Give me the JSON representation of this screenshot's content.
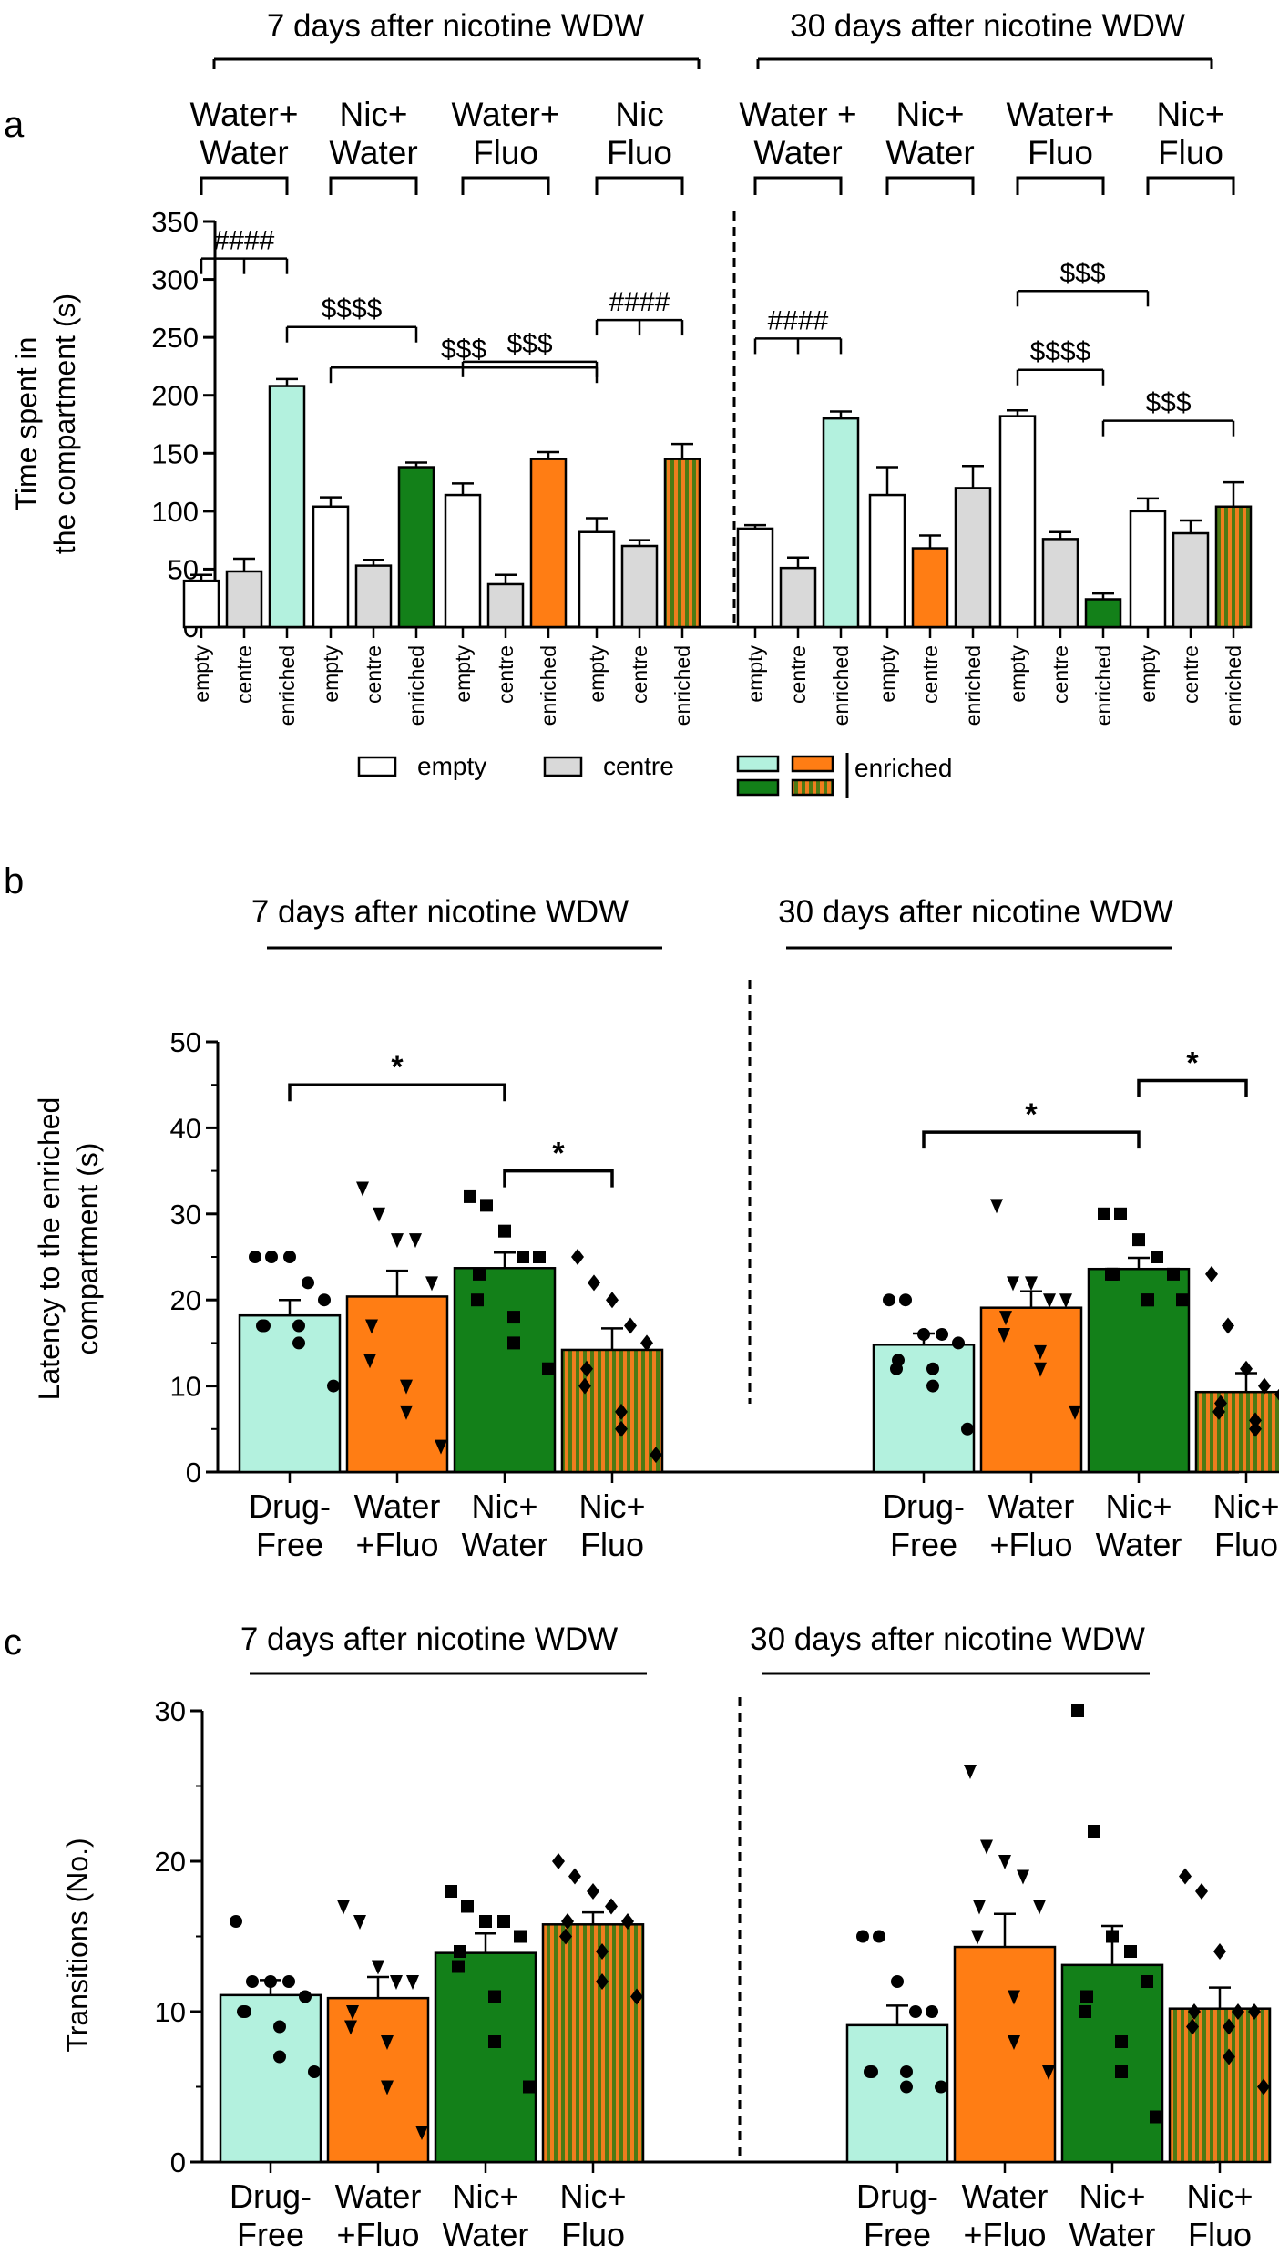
{
  "colors": {
    "white": "#ffffff",
    "grey": "#d9d9d9",
    "mint": "#b3f1de",
    "orange": "#ff7d14",
    "green": "#138019",
    "stripeA": "#4d7a14",
    "stripeB": "#f07d1e",
    "line": "#000000"
  },
  "chart_data": [
    {
      "panel": "a",
      "type": "bar",
      "ylabel": [
        "Time spent in",
        "the compartment (s)"
      ],
      "ylim": [
        0,
        350
      ],
      "yticks": [
        0,
        50,
        100,
        150,
        200,
        250,
        300,
        350
      ],
      "headers": [
        "7 days after nicotine WDW",
        "30 days after nicotine WDW"
      ],
      "groups": [
        {
          "label": [
            "Water+",
            "Water"
          ],
          "bars": [
            {
              "category": "empty",
              "value": 40,
              "err": 5,
              "fill": "white"
            },
            {
              "category": "centre",
              "value": 48,
              "err": 11,
              "fill": "grey"
            },
            {
              "category": "enriched",
              "value": 208,
              "err": 6,
              "fill": "mint"
            }
          ]
        },
        {
          "label": [
            "Nic+",
            "Water"
          ],
          "bars": [
            {
              "category": "empty",
              "value": 104,
              "err": 8,
              "fill": "white"
            },
            {
              "category": "centre",
              "value": 53,
              "err": 5,
              "fill": "grey"
            },
            {
              "category": "enriched",
              "value": 138,
              "err": 4,
              "fill": "green"
            }
          ]
        },
        {
          "label": [
            "Water+",
            "Fluo"
          ],
          "bars": [
            {
              "category": "empty",
              "value": 114,
              "err": 10,
              "fill": "white"
            },
            {
              "category": "centre",
              "value": 37,
              "err": 8,
              "fill": "grey"
            },
            {
              "category": "enriched",
              "value": 145,
              "err": 6,
              "fill": "orange"
            }
          ]
        },
        {
          "label": [
            "Nic",
            "Fluo"
          ],
          "bars": [
            {
              "category": "empty",
              "value": 82,
              "err": 12,
              "fill": "white"
            },
            {
              "category": "centre",
              "value": 70,
              "err": 5,
              "fill": "grey"
            },
            {
              "category": "enriched",
              "value": 145,
              "err": 13,
              "fill": "striped"
            }
          ]
        },
        {
          "label": [
            "Water +",
            "Water"
          ],
          "bars": [
            {
              "category": "empty",
              "value": 85,
              "err": 3,
              "fill": "white"
            },
            {
              "category": "centre",
              "value": 51,
              "err": 9,
              "fill": "grey"
            },
            {
              "category": "enriched",
              "value": 180,
              "err": 6,
              "fill": "mint"
            }
          ]
        },
        {
          "label": [
            "Nic+",
            "Water"
          ],
          "bars": [
            {
              "category": "empty",
              "value": 114,
              "err": 24,
              "fill": "white"
            },
            {
              "category": "centre",
              "value": 68,
              "err": 11,
              "fill": "orange"
            },
            {
              "category": "enriched",
              "value": 120,
              "err": 19,
              "fill": "grey"
            }
          ]
        },
        {
          "label": [
            "Water+",
            "Fluo"
          ],
          "bars": [
            {
              "category": "empty",
              "value": 182,
              "err": 5,
              "fill": "white"
            },
            {
              "category": "centre",
              "value": 76,
              "err": 6,
              "fill": "grey"
            },
            {
              "category": "enriched",
              "value": 24,
              "err": 5,
              "fill": "green"
            }
          ]
        },
        {
          "label": [
            "Nic+",
            "Fluo"
          ],
          "bars": [
            {
              "category": "empty",
              "value": 100,
              "err": 11,
              "fill": "white"
            },
            {
              "category": "centre",
              "value": 81,
              "err": 11,
              "fill": "grey"
            },
            {
              "category": "enriched",
              "value": 104,
              "err": 21,
              "fill": "striped"
            }
          ]
        }
      ],
      "significance": [
        {
          "label": "####",
          "y": 318,
          "bars": [
            0,
            1,
            2
          ]
        },
        {
          "label": "$$$$",
          "y": 259,
          "bars": [
            2,
            5
          ]
        },
        {
          "label": "$$$",
          "y": 224,
          "bars": [
            3,
            9
          ]
        },
        {
          "label": "$$$",
          "y": 229,
          "bars": [
            6,
            9
          ]
        },
        {
          "label": "####",
          "y": 265,
          "bars": [
            9,
            10,
            11
          ]
        },
        {
          "label": "####",
          "y": 249,
          "bars": [
            12,
            13,
            14
          ]
        },
        {
          "label": "$$$",
          "y": 290,
          "bars": [
            18,
            21
          ]
        },
        {
          "label": "$$$$",
          "y": 222,
          "bars": [
            18,
            20
          ]
        },
        {
          "label": "$$$",
          "y": 178,
          "bars": [
            20,
            23
          ]
        }
      ],
      "legend": {
        "empty": "empty",
        "centre": "centre",
        "enriched": "enriched"
      }
    },
    {
      "panel": "b",
      "type": "bar",
      "ylabel": [
        "Latency to the enriched",
        "compartment (s)"
      ],
      "ylim": [
        0,
        50
      ],
      "yticks": [
        0,
        10,
        20,
        30,
        40,
        50
      ],
      "headers": [
        "7 days   after nicotine WDW",
        "30 days after nicotine WDW"
      ],
      "series": [
        {
          "name": [
            "Drug-",
            "Free"
          ],
          "fill": "mint",
          "marker": "circle",
          "values": [
            18.2,
            14.8
          ],
          "err": [
            1.8,
            1.3
          ],
          "points": [
            [
              25,
              25,
              25,
              22,
              20,
              17,
              17,
              17,
              15,
              10
            ],
            [
              20,
              20,
              16,
              16,
              15,
              13,
              12,
              12,
              10,
              5
            ]
          ]
        },
        {
          "name": [
            "Water",
            "+Fluo"
          ],
          "fill": "orange",
          "marker": "triangle",
          "values": [
            20.4,
            19.1
          ],
          "err": [
            3.0,
            1.9
          ],
          "points": [
            [
              33,
              30,
              27,
              27,
              22,
              17,
              13,
              10,
              7,
              3
            ],
            [
              31,
              22,
              22,
              20,
              20,
              18,
              16,
              14,
              12,
              7
            ]
          ]
        },
        {
          "name": [
            "Nic+",
            "Water"
          ],
          "fill": "green",
          "marker": "square",
          "values": [
            23.7,
            23.6
          ],
          "err": [
            1.8,
            1.3
          ],
          "points": [
            [
              32,
              31,
              28,
              25,
              25,
              23,
              20,
              18,
              15,
              12
            ],
            [
              30,
              30,
              27,
              25,
              23,
              23,
              23,
              20,
              20,
              20
            ]
          ]
        },
        {
          "name": [
            "Nic+",
            "Fluo"
          ],
          "fill": "striped",
          "marker": "diamond",
          "values": [
            14.2,
            9.3
          ],
          "err": [
            2.5,
            2.2
          ],
          "points": [
            [
              25,
              22,
              20,
              17,
              15,
              12,
              10,
              7,
              5,
              2
            ],
            [
              23,
              17,
              12,
              10,
              9,
              8,
              7,
              6,
              5,
              5
            ]
          ]
        }
      ],
      "significance": [
        {
          "label": "*",
          "y": 45,
          "period": 0,
          "from": 0,
          "to": 2
        },
        {
          "label": "*",
          "y": 35,
          "period": 0,
          "from": 2,
          "to": 3
        },
        {
          "label": "*",
          "y": 39.5,
          "period": 1,
          "from": 0,
          "to": 2
        },
        {
          "label": "*",
          "y": 45.5,
          "period": 1,
          "from": 2,
          "to": 3
        }
      ]
    },
    {
      "panel": "c",
      "type": "bar",
      "ylabel": [
        "Transitions (No.)"
      ],
      "ylim": [
        0,
        30
      ],
      "yticks": [
        0,
        10,
        20,
        30
      ],
      "headers": [
        "7 days   after nicotine WDW",
        "30 days after nicotine WDW"
      ],
      "series": [
        {
          "name": [
            "Drug-",
            "Free"
          ],
          "fill": "mint",
          "marker": "circle",
          "values": [
            11.1,
            9.1
          ],
          "err": [
            1.0,
            1.3
          ],
          "points": [
            [
              16,
              12,
              12,
              12,
              11,
              10,
              10,
              9,
              7,
              6
            ],
            [
              15,
              15,
              12,
              10,
              10,
              6,
              6,
              6,
              5,
              5
            ]
          ]
        },
        {
          "name": [
            "Water",
            "+Fluo"
          ],
          "fill": "orange",
          "marker": "triangle",
          "values": [
            10.9,
            14.3
          ],
          "err": [
            1.4,
            2.2
          ],
          "points": [
            [
              17,
              16,
              13,
              12,
              12,
              10,
              9,
              8,
              5,
              2
            ],
            [
              26,
              21,
              20,
              19,
              17,
              17,
              15,
              11,
              8,
              6
            ]
          ]
        },
        {
          "name": [
            "Nic+",
            "Water"
          ],
          "fill": "green",
          "marker": "square",
          "values": [
            13.9,
            13.1
          ],
          "err": [
            1.3,
            2.6
          ],
          "points": [
            [
              18,
              17,
              16,
              16,
              15,
              14,
              13,
              11,
              8,
              5
            ],
            [
              30,
              22,
              15,
              14,
              12,
              11,
              10,
              8,
              6,
              3
            ]
          ]
        },
        {
          "name": [
            "Nic+",
            "Fluo"
          ],
          "fill": "striped",
          "marker": "diamond",
          "values": [
            15.8,
            10.2
          ],
          "err": [
            0.8,
            1.4
          ],
          "points": [
            [
              20,
              19,
              18,
              17,
              16,
              16,
              15,
              14,
              12,
              11
            ],
            [
              19,
              18,
              14,
              10,
              10,
              10,
              9,
              9,
              7,
              5
            ]
          ]
        }
      ]
    }
  ]
}
